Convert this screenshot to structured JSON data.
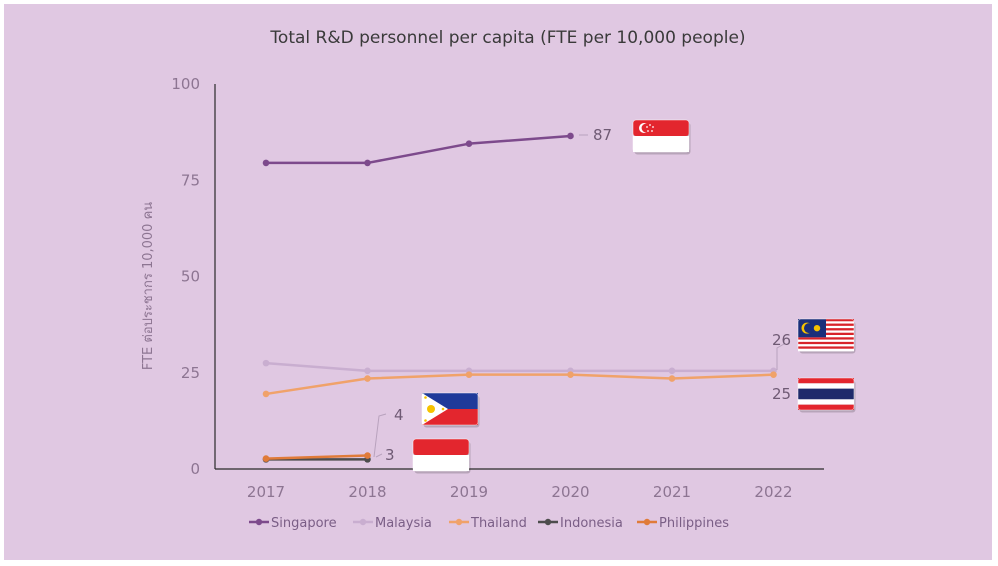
{
  "chart_data": {
    "type": "line",
    "title": "Total R&D personnel per capita (FTE per 10,000 people)",
    "ylabel": "FTE ต่อประชากร 10,000 คน",
    "xlabel": "",
    "ylim": [
      0,
      100
    ],
    "yticks": [
      0,
      25,
      50,
      75,
      100
    ],
    "categories": [
      "2017",
      "2018",
      "2019",
      "2020",
      "2021",
      "2022"
    ],
    "legend_position": "bottom",
    "grid": false,
    "series": [
      {
        "name": "Singapore",
        "color": "#7d4a8c",
        "values": [
          79.5,
          79.5,
          84.5,
          86.5,
          null,
          null
        ],
        "flag": "singapore-flag-icon"
      },
      {
        "name": "Malaysia",
        "color": "#c9aed0",
        "values": [
          27.5,
          25.5,
          25.5,
          25.5,
          25.5,
          25.5
        ],
        "flag": "malaysia-flag-icon"
      },
      {
        "name": "Thailand",
        "color": "#f0a26a",
        "values": [
          19.5,
          23.5,
          24.5,
          24.5,
          23.5,
          24.5
        ],
        "flag": "thailand-flag-icon"
      },
      {
        "name": "Indonesia",
        "color": "#4d4d4d",
        "values": [
          2.5,
          2.5,
          null,
          null,
          null,
          null
        ],
        "flag": "indonesia-flag-icon"
      },
      {
        "name": "Philippines",
        "color": "#e07b39",
        "values": [
          2.7,
          3.5,
          null,
          null,
          null,
          null
        ],
        "flag": "philippines-flag-icon"
      }
    ],
    "data_labels": [
      {
        "series": "Singapore",
        "text": "87"
      },
      {
        "series": "Malaysia",
        "text": "26"
      },
      {
        "series": "Thailand",
        "text": "25"
      },
      {
        "series": "Philippines",
        "text": "4"
      },
      {
        "series": "Indonesia",
        "text": "3"
      }
    ]
  }
}
